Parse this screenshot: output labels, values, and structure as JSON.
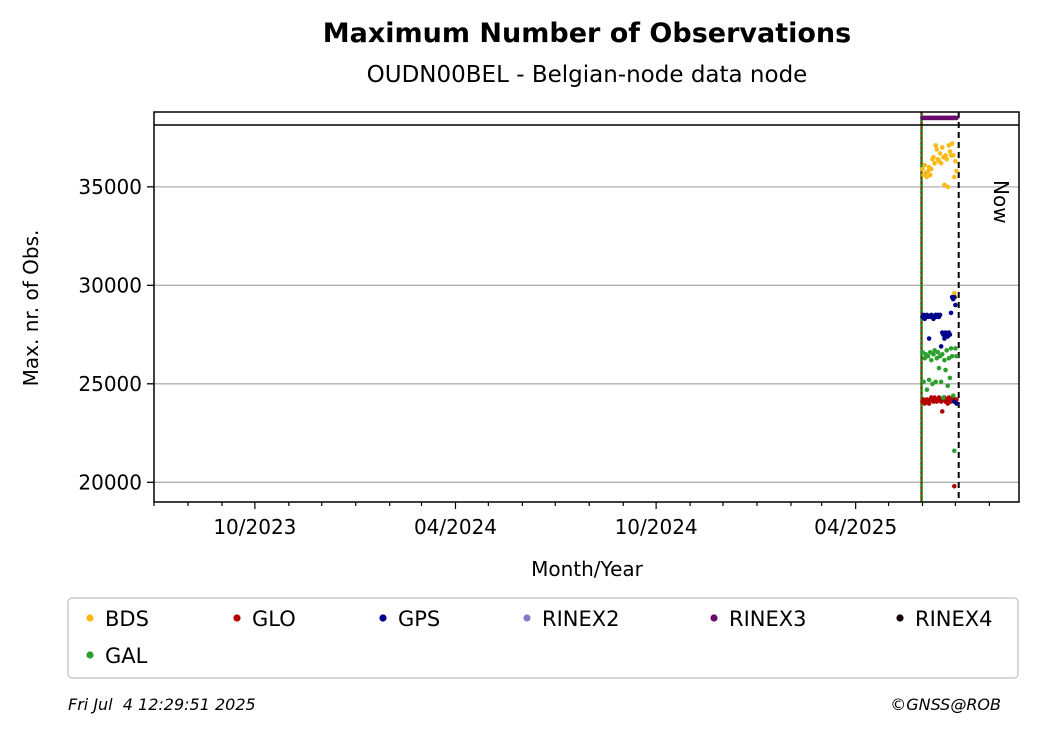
{
  "chart_data": {
    "type": "scatter",
    "title": "Maximum Number of Observations",
    "subtitle": "OUDN00BEL - Belgian-node data node",
    "xlabel": "Month/Year",
    "ylabel": "Max. nr. of Obs.",
    "x_ticks": [
      "10/2023",
      "04/2024",
      "10/2024",
      "04/2025"
    ],
    "y_ticks": [
      20000,
      25000,
      30000,
      35000
    ],
    "ylim": [
      19000,
      38800
    ],
    "xlim": [
      "2023-07-01",
      "2025-08-28"
    ],
    "grid": "horizontal",
    "legend_position": "bottom",
    "now_label": "Now",
    "now_date": "2025-07-04",
    "start_date": "2025-06-01",
    "series": [
      {
        "name": "BDS",
        "color": "#fbb917",
        "points": [
          [
            "2025-06-01",
            35900
          ],
          [
            "2025-06-02",
            35600
          ],
          [
            "2025-06-03",
            36100
          ],
          [
            "2025-06-04",
            35700
          ],
          [
            "2025-06-05",
            35500
          ],
          [
            "2025-06-06",
            35800
          ],
          [
            "2025-06-07",
            36000
          ],
          [
            "2025-06-08",
            35600
          ],
          [
            "2025-06-09",
            35900
          ],
          [
            "2025-06-10",
            36400
          ],
          [
            "2025-06-11",
            36500
          ],
          [
            "2025-06-12",
            36200
          ],
          [
            "2025-06-13",
            37100
          ],
          [
            "2025-06-14",
            36900
          ],
          [
            "2025-06-15",
            36400
          ],
          [
            "2025-06-16",
            36300
          ],
          [
            "2025-06-17",
            36700
          ],
          [
            "2025-06-18",
            36200
          ],
          [
            "2025-06-19",
            37000
          ],
          [
            "2025-06-20",
            36500
          ],
          [
            "2025-06-21",
            35100
          ],
          [
            "2025-06-22",
            36600
          ],
          [
            "2025-06-23",
            36400
          ],
          [
            "2025-06-24",
            35000
          ],
          [
            "2025-06-25",
            37100
          ],
          [
            "2025-06-26",
            36800
          ],
          [
            "2025-06-27",
            36600
          ],
          [
            "2025-06-28",
            37200
          ],
          [
            "2025-06-29",
            36600
          ],
          [
            "2025-06-30",
            35500
          ],
          [
            "2025-07-01",
            36300
          ],
          [
            "2025-07-02",
            35800
          ],
          [
            "2025-06-30",
            29600
          ],
          [
            "2025-07-01",
            29400
          ]
        ]
      },
      {
        "name": "GLO",
        "color": "#b30000",
        "points": [
          [
            "2025-06-01",
            24100
          ],
          [
            "2025-06-02",
            24200
          ],
          [
            "2025-06-03",
            24000
          ],
          [
            "2025-06-04",
            24100
          ],
          [
            "2025-06-05",
            24200
          ],
          [
            "2025-06-06",
            24100
          ],
          [
            "2025-06-07",
            24000
          ],
          [
            "2025-06-08",
            24200
          ],
          [
            "2025-06-09",
            24300
          ],
          [
            "2025-06-10",
            24200
          ],
          [
            "2025-06-11",
            24100
          ],
          [
            "2025-06-12",
            24300
          ],
          [
            "2025-06-13",
            24200
          ],
          [
            "2025-06-14",
            24100
          ],
          [
            "2025-06-15",
            24200
          ],
          [
            "2025-06-16",
            24300
          ],
          [
            "2025-06-17",
            24200
          ],
          [
            "2025-06-18",
            24100
          ],
          [
            "2025-06-19",
            23600
          ],
          [
            "2025-06-20",
            24200
          ],
          [
            "2025-06-21",
            24300
          ],
          [
            "2025-06-22",
            24100
          ],
          [
            "2025-06-23",
            24200
          ],
          [
            "2025-06-24",
            24000
          ],
          [
            "2025-06-25",
            24300
          ],
          [
            "2025-06-26",
            24200
          ],
          [
            "2025-06-27",
            24100
          ],
          [
            "2025-06-28",
            24200
          ],
          [
            "2025-06-29",
            24300
          ],
          [
            "2025-06-30",
            19800
          ],
          [
            "2025-07-01",
            24100
          ],
          [
            "2025-07-02",
            24200
          ]
        ]
      },
      {
        "name": "GPS",
        "color": "#00008b",
        "points": [
          [
            "2025-06-01",
            28400
          ],
          [
            "2025-06-02",
            28500
          ],
          [
            "2025-06-03",
            28300
          ],
          [
            "2025-06-04",
            28400
          ],
          [
            "2025-06-05",
            28500
          ],
          [
            "2025-06-06",
            28400
          ],
          [
            "2025-06-07",
            27300
          ],
          [
            "2025-06-08",
            28400
          ],
          [
            "2025-06-09",
            28500
          ],
          [
            "2025-06-10",
            28400
          ],
          [
            "2025-06-11",
            28300
          ],
          [
            "2025-06-12",
            28400
          ],
          [
            "2025-06-13",
            28500
          ],
          [
            "2025-06-14",
            28400
          ],
          [
            "2025-06-15",
            28500
          ],
          [
            "2025-06-16",
            28400
          ],
          [
            "2025-06-17",
            28500
          ],
          [
            "2025-06-18",
            26900
          ],
          [
            "2025-06-19",
            27600
          ],
          [
            "2025-06-20",
            27500
          ],
          [
            "2025-06-21",
            27300
          ],
          [
            "2025-06-22",
            27600
          ],
          [
            "2025-06-23",
            27500
          ],
          [
            "2025-06-24",
            27400
          ],
          [
            "2025-06-25",
            27600
          ],
          [
            "2025-06-26",
            27500
          ],
          [
            "2025-06-27",
            28600
          ],
          [
            "2025-06-28",
            29400
          ],
          [
            "2025-06-29",
            29300
          ],
          [
            "2025-06-30",
            29400
          ],
          [
            "2025-07-01",
            29000
          ],
          [
            "2025-07-02",
            24000
          ],
          [
            "2025-06-30",
            24100
          ]
        ]
      },
      {
        "name": "RINEX2",
        "color": "#8878c3",
        "points": []
      },
      {
        "name": "RINEX3",
        "color": "#6a0a6b",
        "points": [
          [
            "2025-06-01",
            38500
          ],
          [
            "2025-06-02",
            38500
          ],
          [
            "2025-06-03",
            38500
          ],
          [
            "2025-06-04",
            38500
          ],
          [
            "2025-06-05",
            38500
          ],
          [
            "2025-06-06",
            38500
          ],
          [
            "2025-06-07",
            38500
          ],
          [
            "2025-06-08",
            38500
          ],
          [
            "2025-06-09",
            38500
          ],
          [
            "2025-06-10",
            38500
          ],
          [
            "2025-06-11",
            38500
          ],
          [
            "2025-06-12",
            38500
          ],
          [
            "2025-06-13",
            38500
          ],
          [
            "2025-06-14",
            38500
          ],
          [
            "2025-06-15",
            38500
          ],
          [
            "2025-06-16",
            38500
          ],
          [
            "2025-06-17",
            38500
          ],
          [
            "2025-06-18",
            38500
          ],
          [
            "2025-06-19",
            38500
          ],
          [
            "2025-06-20",
            38500
          ],
          [
            "2025-06-21",
            38500
          ],
          [
            "2025-06-22",
            38500
          ],
          [
            "2025-06-23",
            38500
          ],
          [
            "2025-06-24",
            38500
          ],
          [
            "2025-06-25",
            38500
          ],
          [
            "2025-06-26",
            38500
          ],
          [
            "2025-06-27",
            38500
          ],
          [
            "2025-06-28",
            38500
          ],
          [
            "2025-06-29",
            38500
          ],
          [
            "2025-06-30",
            38500
          ],
          [
            "2025-07-01",
            38500
          ],
          [
            "2025-07-02",
            38500
          ]
        ]
      },
      {
        "name": "RINEX4",
        "color": "#1a0010",
        "points": []
      },
      {
        "name": "GAL",
        "color": "#2ca02c",
        "points": [
          [
            "2025-06-01",
            26600
          ],
          [
            "2025-06-02",
            25100
          ],
          [
            "2025-06-03",
            26300
          ],
          [
            "2025-06-04",
            26500
          ],
          [
            "2025-06-05",
            24700
          ],
          [
            "2025-06-06",
            26400
          ],
          [
            "2025-06-07",
            25200
          ],
          [
            "2025-06-08",
            26600
          ],
          [
            "2025-06-09",
            26200
          ],
          [
            "2025-06-10",
            25000
          ],
          [
            "2025-06-11",
            26500
          ],
          [
            "2025-06-12",
            26700
          ],
          [
            "2025-06-13",
            25100
          ],
          [
            "2025-06-14",
            26300
          ],
          [
            "2025-06-15",
            26600
          ],
          [
            "2025-06-16",
            25800
          ],
          [
            "2025-06-17",
            26400
          ],
          [
            "2025-06-18",
            25100
          ],
          [
            "2025-06-19",
            26500
          ],
          [
            "2025-06-20",
            24300
          ],
          [
            "2025-06-21",
            26200
          ],
          [
            "2025-06-22",
            25700
          ],
          [
            "2025-06-23",
            26700
          ],
          [
            "2025-06-24",
            24900
          ],
          [
            "2025-06-25",
            26300
          ],
          [
            "2025-06-26",
            25300
          ],
          [
            "2025-06-27",
            26800
          ],
          [
            "2025-06-28",
            26400
          ],
          [
            "2025-06-29",
            24400
          ],
          [
            "2025-06-30",
            21600
          ],
          [
            "2025-07-01",
            26800
          ],
          [
            "2025-07-02",
            26400
          ]
        ]
      }
    ]
  },
  "footer": {
    "timestamp": "Fri Jul  4 12:29:51 2025",
    "copyright": "©GNSS@ROB"
  }
}
